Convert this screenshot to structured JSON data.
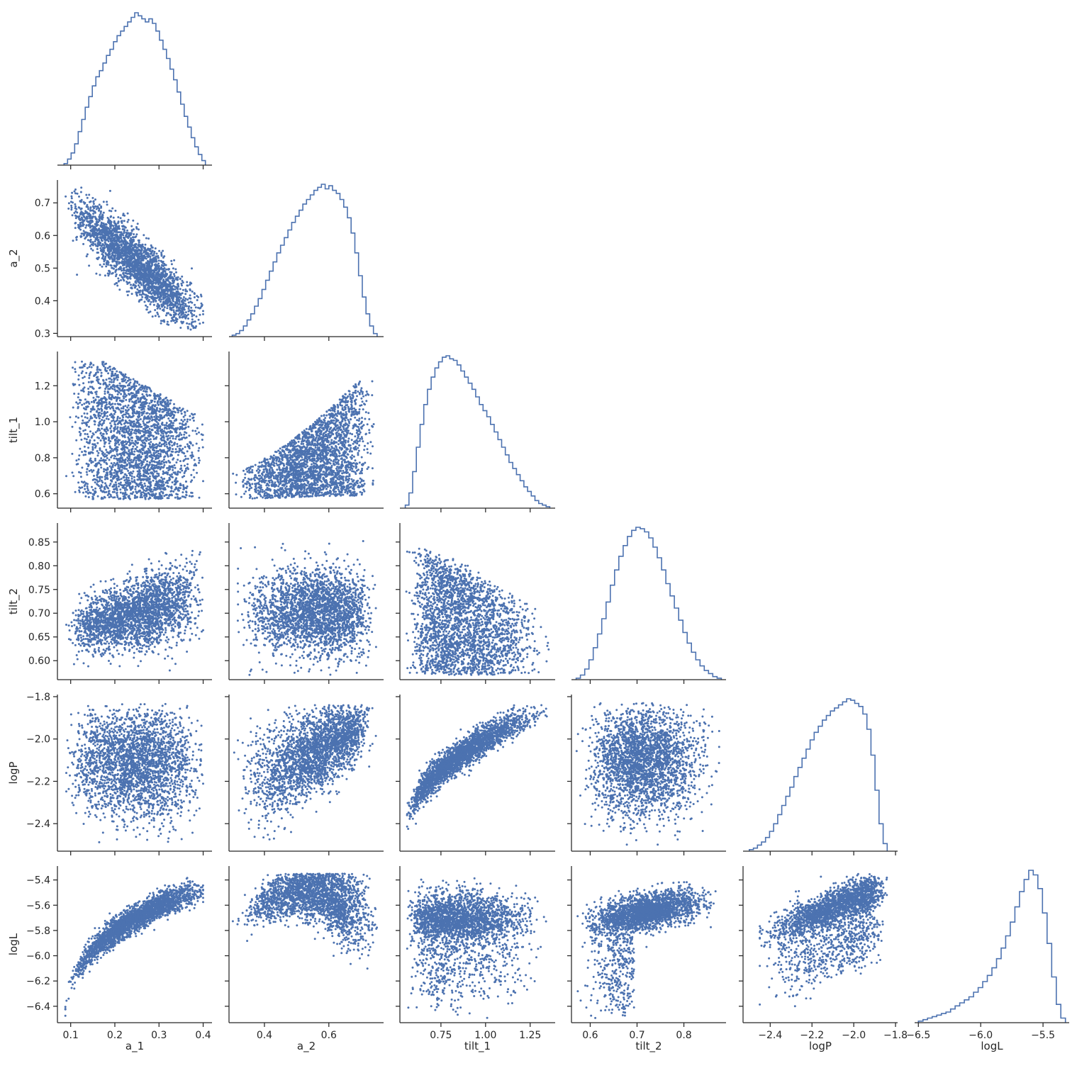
{
  "chart_data": {
    "type": "scatter",
    "variables": [
      "a_1",
      "a_2",
      "tilt_1",
      "tilt_2",
      "logP",
      "logL"
    ],
    "axis_labels": {
      "a_1": "a_1",
      "a_2": "a_2",
      "tilt_1": "tilt_1",
      "tilt_2": "tilt_2",
      "logP": "logP",
      "logL": "logL"
    },
    "ranges": {
      "a_1": [
        0.07,
        0.42
      ],
      "a_2": [
        0.29,
        0.77
      ],
      "tilt_1": [
        0.52,
        1.39
      ],
      "tilt_2": [
        0.56,
        0.89
      ],
      "logP": [
        -2.53,
        -1.79
      ],
      "logL": [
        -6.53,
        -5.29
      ]
    },
    "x_ticks": {
      "a_1": [
        {
          "v": 0.1,
          "t": "0.1"
        },
        {
          "v": 0.2,
          "t": "0.2"
        },
        {
          "v": 0.3,
          "t": "0.3"
        },
        {
          "v": 0.4,
          "t": "0.4"
        }
      ],
      "a_2": [
        {
          "v": 0.4,
          "t": "0.4"
        },
        {
          "v": 0.6,
          "t": "0.6"
        }
      ],
      "tilt_1": [
        {
          "v": 0.75,
          "t": "0.75"
        },
        {
          "v": 1.0,
          "t": "1.00"
        },
        {
          "v": 1.25,
          "t": "1.25"
        }
      ],
      "tilt_2": [
        {
          "v": 0.6,
          "t": "0.6"
        },
        {
          "v": 0.7,
          "t": "0.7"
        },
        {
          "v": 0.8,
          "t": "0.8"
        }
      ],
      "logP": [
        {
          "v": -2.4,
          "t": "−2.4"
        },
        {
          "v": -2.2,
          "t": "−2.2"
        },
        {
          "v": -2.0,
          "t": "−2.0"
        },
        {
          "v": -1.8,
          "t": "−1.8"
        }
      ],
      "logL": [
        {
          "v": -6.5,
          "t": "−6.5"
        },
        {
          "v": -6.0,
          "t": "−6.0"
        },
        {
          "v": -5.5,
          "t": "−5.5"
        }
      ]
    },
    "y_ticks": {
      "a_2": [
        {
          "v": 0.3,
          "t": "0.3"
        },
        {
          "v": 0.4,
          "t": "0.4"
        },
        {
          "v": 0.5,
          "t": "0.5"
        },
        {
          "v": 0.6,
          "t": "0.6"
        },
        {
          "v": 0.7,
          "t": "0.7"
        }
      ],
      "tilt_1": [
        {
          "v": 0.6,
          "t": "0.6"
        },
        {
          "v": 0.8,
          "t": "0.8"
        },
        {
          "v": 1.0,
          "t": "1.0"
        },
        {
          "v": 1.2,
          "t": "1.2"
        }
      ],
      "tilt_2": [
        {
          "v": 0.6,
          "t": "0.60"
        },
        {
          "v": 0.65,
          "t": "0.65"
        },
        {
          "v": 0.7,
          "t": "0.70"
        },
        {
          "v": 0.75,
          "t": "0.75"
        },
        {
          "v": 0.8,
          "t": "0.80"
        },
        {
          "v": 0.85,
          "t": "0.85"
        }
      ],
      "logP": [
        {
          "v": -2.4,
          "t": "−2.4"
        },
        {
          "v": -2.2,
          "t": "−2.2"
        },
        {
          "v": -2.0,
          "t": "−2.0"
        },
        {
          "v": -1.8,
          "t": "−1.8"
        }
      ],
      "logL": [
        {
          "v": -6.4,
          "t": "−6.4"
        },
        {
          "v": -6.2,
          "t": "−6.2"
        },
        {
          "v": -6.0,
          "t": "−6.0"
        },
        {
          "v": -5.8,
          "t": "−5.8"
        },
        {
          "v": -5.6,
          "t": "−5.6"
        },
        {
          "v": -5.4,
          "t": "−5.4"
        }
      ]
    },
    "histograms": {
      "a_1": {
        "range": [
          0.085,
          0.405
        ],
        "counts": [
          1,
          4,
          8,
          14,
          22,
          30,
          38,
          45,
          52,
          58,
          62,
          67,
          72,
          76,
          81,
          85,
          88,
          91,
          94,
          97,
          100,
          98,
          96,
          94,
          96,
          93,
          88,
          82,
          76,
          70,
          63,
          56,
          48,
          40,
          32,
          25,
          18,
          12,
          7,
          3
        ]
      },
      "a_2": {
        "range": [
          0.3,
          0.75
        ],
        "counts": [
          1,
          2,
          4,
          7,
          11,
          15,
          20,
          25,
          31,
          37,
          43,
          49,
          55,
          60,
          65,
          70,
          75,
          79,
          83,
          87,
          90,
          93,
          96,
          98,
          100,
          97,
          99,
          96,
          94,
          90,
          85,
          78,
          68,
          55,
          40,
          26,
          15,
          7,
          2
        ]
      },
      "tilt_1": {
        "range": [
          0.55,
          1.36
        ],
        "counts": [
          2,
          10,
          24,
          40,
          55,
          68,
          78,
          86,
          92,
          96,
          99,
          100,
          98,
          97,
          94,
          90,
          86,
          82,
          78,
          73,
          68,
          64,
          60,
          55,
          50,
          45,
          40,
          35,
          30,
          26,
          22,
          18,
          14,
          11,
          8,
          5,
          3,
          2,
          1
        ]
      },
      "tilt_2": {
        "range": [
          0.57,
          0.88
        ],
        "counts": [
          1,
          3,
          7,
          13,
          21,
          30,
          40,
          51,
          62,
          72,
          81,
          88,
          94,
          98,
          100,
          99,
          97,
          93,
          87,
          80,
          72,
          63,
          55,
          47,
          39,
          31,
          24,
          18,
          13,
          9,
          6,
          4,
          2,
          1
        ]
      },
      "logP": {
        "range": [
          -2.5,
          -1.84
        ],
        "counts": [
          1,
          2,
          4,
          6,
          9,
          13,
          18,
          24,
          30,
          36,
          42,
          49,
          55,
          61,
          67,
          73,
          78,
          82,
          86,
          89,
          92,
          94,
          96,
          98,
          100,
          99,
          97,
          95,
          90,
          80,
          63,
          40,
          18,
          5
        ]
      },
      "logL": {
        "range": [
          -6.5,
          -5.32
        ],
        "counts": [
          1,
          2,
          3,
          4,
          5,
          6,
          7,
          9,
          11,
          13,
          15,
          17,
          20,
          23,
          27,
          31,
          36,
          42,
          49,
          57,
          66,
          76,
          86,
          94,
          100,
          97,
          88,
          72,
          52,
          30,
          12,
          3
        ]
      }
    },
    "pair_models": [
      {
        "x": "a_1",
        "y": "a_2",
        "shape": "strong negative correlation",
        "x_extent": [
          0.088,
          0.4
        ],
        "y_extent": [
          0.31,
          0.75
        ]
      },
      {
        "x": "a_1",
        "y": "tilt_1",
        "shape": "triangular cloud, weak negative",
        "x_extent": [
          0.09,
          0.4
        ],
        "y_extent": [
          0.55,
          1.35
        ]
      },
      {
        "x": "a_2",
        "y": "tilt_1",
        "shape": "positive, fanning upward",
        "x_extent": [
          0.3,
          0.75
        ],
        "y_extent": [
          0.55,
          1.35
        ]
      },
      {
        "x": "a_1",
        "y": "tilt_2",
        "shape": "positive, widening",
        "x_extent": [
          0.09,
          0.4
        ],
        "y_extent": [
          0.57,
          0.88
        ]
      },
      {
        "x": "a_2",
        "y": "tilt_2",
        "shape": "broad cloud",
        "x_extent": [
          0.3,
          0.75
        ],
        "y_extent": [
          0.57,
          0.88
        ]
      },
      {
        "x": "tilt_1",
        "y": "tilt_2",
        "shape": "broad cloud, weak negative",
        "x_extent": [
          0.55,
          1.36
        ],
        "y_extent": [
          0.57,
          0.88
        ]
      },
      {
        "x": "a_1",
        "y": "logP",
        "shape": "round cloud",
        "x_extent": [
          0.09,
          0.4
        ],
        "y_extent": [
          -2.5,
          -1.83
        ]
      },
      {
        "x": "a_2",
        "y": "logP",
        "shape": "positive, fanning",
        "x_extent": [
          0.3,
          0.75
        ],
        "y_extent": [
          -2.5,
          -1.84
        ]
      },
      {
        "x": "tilt_1",
        "y": "logP",
        "shape": "tight concave positive curve",
        "x_extent": [
          0.55,
          1.36
        ],
        "y_extent": [
          -2.5,
          -1.84
        ]
      },
      {
        "x": "tilt_2",
        "y": "logP",
        "shape": "round cloud",
        "x_extent": [
          0.57,
          0.88
        ],
        "y_extent": [
          -2.5,
          -1.83
        ]
      },
      {
        "x": "a_1",
        "y": "logL",
        "shape": "tight concave rising curve",
        "x_extent": [
          0.088,
          0.4
        ],
        "y_extent": [
          -6.5,
          -5.35
        ]
      },
      {
        "x": "a_2",
        "y": "logL",
        "shape": "arch, falling at high a_2",
        "x_extent": [
          0.3,
          0.75
        ],
        "y_extent": [
          -6.5,
          -5.35
        ]
      },
      {
        "x": "tilt_1",
        "y": "logL",
        "shape": "flat band with lower tail",
        "x_extent": [
          0.55,
          1.36
        ],
        "y_extent": [
          -6.5,
          -5.35
        ]
      },
      {
        "x": "tilt_2",
        "y": "logL",
        "shape": "curved band, lower tail at low tilt_2",
        "x_extent": [
          0.57,
          0.88
        ],
        "y_extent": [
          -6.5,
          -5.35
        ]
      },
      {
        "x": "logP",
        "y": "logL",
        "shape": "wedge rising with logP",
        "x_extent": [
          -2.45,
          -1.84
        ],
        "y_extent": [
          -6.5,
          -5.35
        ]
      }
    ],
    "grid": false,
    "legend": "none",
    "colors": {
      "points": "#4c72b0",
      "histogram": "#4c72b0",
      "axes": "#262626"
    }
  }
}
